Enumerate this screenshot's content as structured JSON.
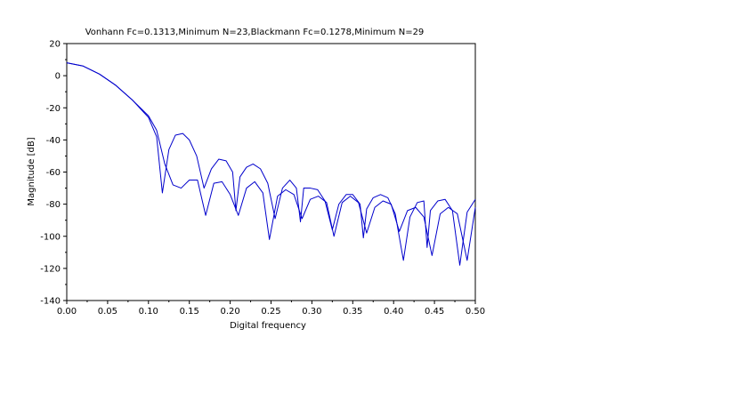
{
  "chart_data": {
    "type": "line",
    "title": "Vonhann Fc=0.1313,Minimum N=23,Blackmann Fc=0.1278,Minimum N=29",
    "xlabel": "Digital frequency",
    "ylabel": "Magnitude [dB]",
    "xlim": [
      0,
      0.5
    ],
    "ylim": [
      -140,
      20
    ],
    "xticks": [
      "0.00",
      "0.05",
      "0.10",
      "0.15",
      "0.20",
      "0.25",
      "0.30",
      "0.35",
      "0.40",
      "0.45",
      "0.50"
    ],
    "yticks": [
      "20",
      "0",
      "-20",
      "-40",
      "-60",
      "-80",
      "-100",
      "-120",
      "-140"
    ],
    "grid": false,
    "legend": "none",
    "line_color": "#0000cc",
    "series": [
      {
        "x": [
          0,
          0.02,
          0.04,
          0.06,
          0.08,
          0.1,
          0.11,
          0.117,
          0.125,
          0.133,
          0.142,
          0.15,
          0.159,
          0.168,
          0.177,
          0.186,
          0.195,
          0.203,
          0.207,
          0.212,
          0.22,
          0.228,
          0.237,
          0.246,
          0.255,
          0.264,
          0.273,
          0.281,
          0.286,
          0.29,
          0.298,
          0.307,
          0.316,
          0.325,
          0.333,
          0.342,
          0.35,
          0.359,
          0.363,
          0.367,
          0.375,
          0.384,
          0.393,
          0.402,
          0.412,
          0.42,
          0.429,
          0.437,
          0.441,
          0.445,
          0.454,
          0.463,
          0.472,
          0.481,
          0.49,
          0.5
        ],
        "y": [
          8,
          6,
          1,
          -6,
          -15,
          -26,
          -38,
          -73,
          -46,
          -37,
          -36,
          -40,
          -50,
          -70,
          -58,
          -52,
          -53,
          -60,
          -84,
          -63,
          -57,
          -55,
          -58,
          -67,
          -89,
          -70,
          -65,
          -70,
          -91,
          -70,
          -70,
          -71,
          -78,
          -96,
          -80,
          -74,
          -74,
          -80,
          -101,
          -83,
          -76,
          -74,
          -76,
          -86,
          -115,
          -88,
          -79,
          -78,
          -107,
          -84,
          -78,
          -77,
          -84,
          -118,
          -85,
          -77
        ]
      },
      {
        "x": [
          0,
          0.02,
          0.04,
          0.06,
          0.08,
          0.1,
          0.11,
          0.12,
          0.13,
          0.14,
          0.15,
          0.16,
          0.17,
          0.18,
          0.19,
          0.2,
          0.21,
          0.22,
          0.23,
          0.24,
          0.248,
          0.258,
          0.268,
          0.278,
          0.288,
          0.298,
          0.308,
          0.318,
          0.327,
          0.337,
          0.347,
          0.357,
          0.367,
          0.377,
          0.387,
          0.397,
          0.407,
          0.417,
          0.427,
          0.437,
          0.447,
          0.457,
          0.467,
          0.478,
          0.49,
          0.5
        ],
        "y": [
          8,
          6,
          1,
          -6,
          -15,
          -25,
          -34,
          -55,
          -68,
          -70,
          -65,
          -65,
          -87,
          -67,
          -66,
          -74,
          -87,
          -70,
          -66,
          -73,
          -102,
          -75,
          -71,
          -74,
          -89,
          -77,
          -75,
          -79,
          -100,
          -79,
          -75,
          -79,
          -98,
          -82,
          -78,
          -80,
          -97,
          -84,
          -82,
          -88,
          -112,
          -86,
          -82,
          -86,
          -115,
          -82
        ]
      }
    ]
  }
}
